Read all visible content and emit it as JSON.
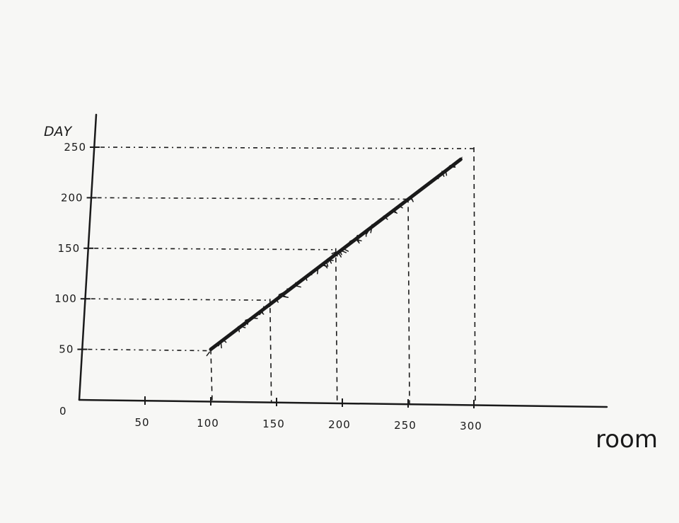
{
  "chart_data": {
    "type": "line",
    "title": "",
    "xlabel": "room",
    "ylabel": "DAY",
    "origin_label": "0",
    "x_ticks": [
      "50",
      "100",
      "150",
      "200",
      "250",
      "300"
    ],
    "y_ticks": [
      "50",
      "100",
      "150",
      "200",
      "250"
    ],
    "xlim": [
      0,
      300
    ],
    "ylim": [
      0,
      250
    ],
    "grid": false,
    "legend": "none",
    "series": [
      {
        "points": [
          [
            100,
            50
          ],
          [
            290,
            238
          ]
        ]
      }
    ],
    "guides": [
      {
        "x": 100,
        "y": 50
      },
      {
        "x": 145,
        "y": 100
      },
      {
        "x": 195,
        "y": 150
      },
      {
        "x": 250,
        "y": 200
      },
      {
        "x": 300,
        "y": 250
      }
    ],
    "colors": {
      "ink": "#1a1a1a",
      "paper": "#f7f7f5"
    }
  }
}
